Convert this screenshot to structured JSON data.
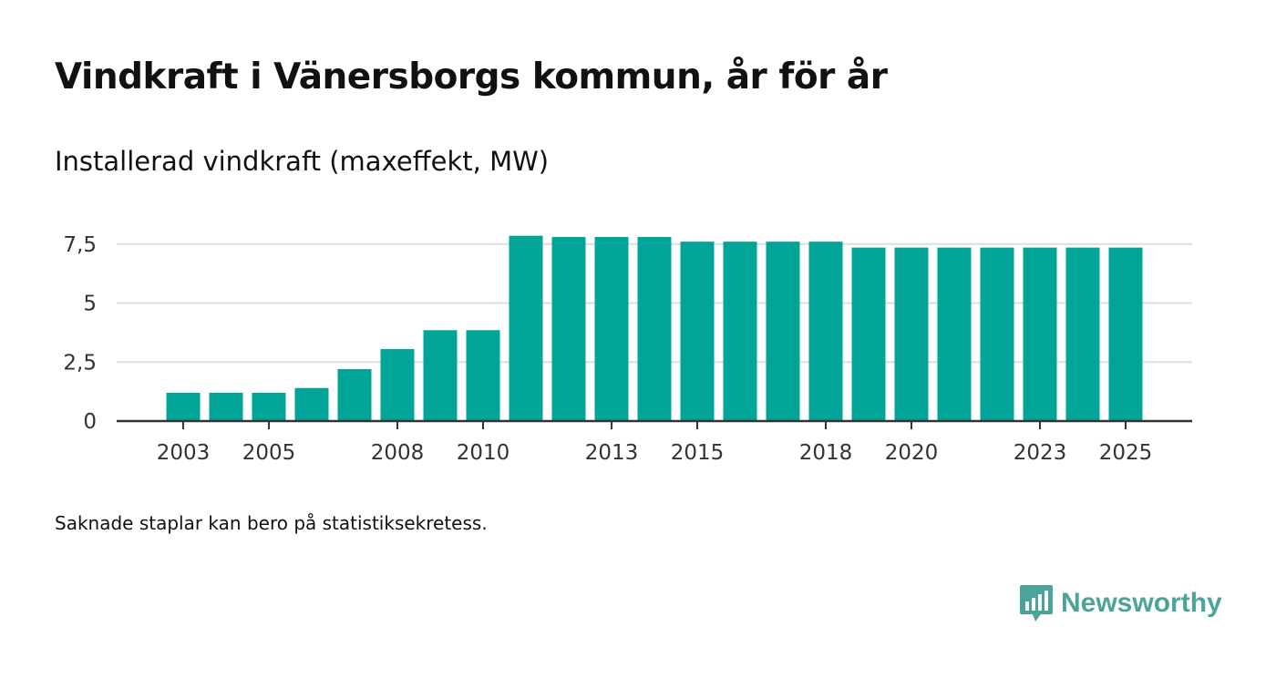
{
  "header": {
    "title": "Vindkraft i Vänersborgs kommun, år för år",
    "subtitle": "Installerad vindkraft (maxeffekt, MW)"
  },
  "footnote": "Saknade staplar kan bero på statistiksekretess.",
  "brand": {
    "name": "Newsworthy",
    "icon": "bar-chart-speech-bubble-icon",
    "color": "#4ba49a"
  },
  "chart_data": {
    "type": "bar",
    "title": "Vindkraft i Vänersborgs kommun, år för år",
    "ylabel": "Installerad vindkraft (maxeffekt, MW)",
    "xlabel": "",
    "categories": [
      "2003",
      "2004",
      "2005",
      "2006",
      "2007",
      "2008",
      "2009",
      "2010",
      "2011",
      "2012",
      "2013",
      "2014",
      "2015",
      "2016",
      "2017",
      "2018",
      "2019",
      "2020",
      "2021",
      "2022",
      "2023",
      "2024",
      "2025"
    ],
    "values": [
      1.2,
      1.2,
      1.2,
      1.4,
      2.2,
      3.05,
      3.85,
      3.85,
      7.85,
      7.8,
      7.8,
      7.8,
      7.6,
      7.6,
      7.6,
      7.6,
      7.35,
      7.35,
      7.35,
      7.35,
      7.35,
      7.35,
      7.35
    ],
    "x_tick_labels": [
      "2003",
      "2005",
      "2008",
      "2010",
      "2013",
      "2015",
      "2018",
      "2020",
      "2023",
      "2025"
    ],
    "y_ticks": [
      0,
      2.5,
      5,
      7.5
    ],
    "y_tick_labels": [
      "0",
      "2,5",
      "5",
      "7,5"
    ],
    "ylim": [
      0,
      8
    ],
    "grid": true,
    "bar_color": "#00a598"
  }
}
